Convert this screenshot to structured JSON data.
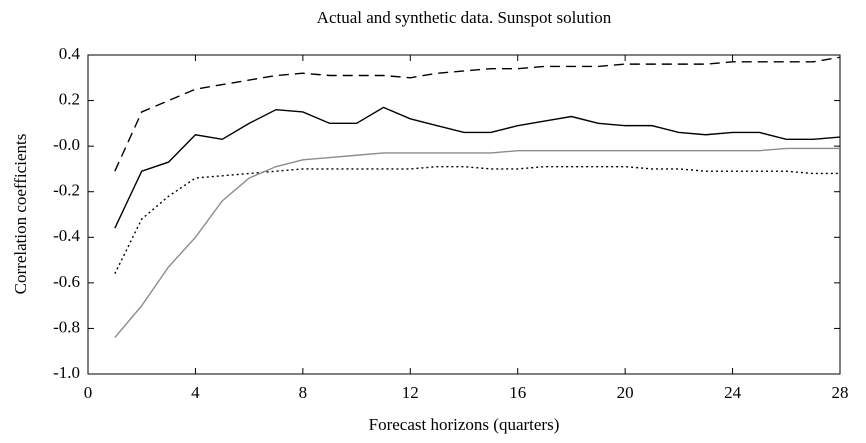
{
  "chart_data": {
    "type": "line",
    "title": "Actual and synthetic data. Sunspot solution",
    "x_label": "Forecast horizons (quarters)",
    "y_label": "Correlation coefficients",
    "x": [
      1,
      2,
      3,
      4,
      5,
      6,
      7,
      8,
      9,
      10,
      11,
      12,
      13,
      14,
      15,
      16,
      17,
      18,
      19,
      20,
      21,
      22,
      23,
      24,
      25,
      26,
      27,
      28
    ],
    "series": [
      {
        "color": "#000000",
        "dash": "dashed",
        "values": [
          -0.11,
          0.15,
          0.2,
          0.25,
          0.27,
          0.29,
          0.31,
          0.32,
          0.31,
          0.31,
          0.31,
          0.3,
          0.32,
          0.33,
          0.34,
          0.34,
          0.35,
          0.35,
          0.35,
          0.36,
          0.36,
          0.36,
          0.36,
          0.37,
          0.37,
          0.37,
          0.37,
          0.39
        ]
      },
      {
        "color": "#000000",
        "dash": "solid",
        "values": [
          -0.36,
          -0.11,
          -0.07,
          0.05,
          0.03,
          0.1,
          0.16,
          0.15,
          0.1,
          0.1,
          0.17,
          0.12,
          0.09,
          0.06,
          0.06,
          0.09,
          0.11,
          0.13,
          0.1,
          0.09,
          0.09,
          0.06,
          0.05,
          0.06,
          0.06,
          0.03,
          0.03,
          0.04
        ]
      },
      {
        "color": "#000000",
        "dash": "dotted",
        "values": [
          -0.56,
          -0.32,
          -0.22,
          -0.14,
          -0.13,
          -0.12,
          -0.11,
          -0.1,
          -0.1,
          -0.1,
          -0.1,
          -0.1,
          -0.09,
          -0.09,
          -0.1,
          -0.1,
          -0.09,
          -0.09,
          -0.09,
          -0.09,
          -0.1,
          -0.1,
          -0.11,
          -0.11,
          -0.11,
          -0.11,
          -0.12,
          -0.12
        ]
      },
      {
        "color": "#8c8c8c",
        "dash": "solid",
        "values": [
          -0.84,
          -0.7,
          -0.53,
          -0.4,
          -0.24,
          -0.14,
          -0.09,
          -0.06,
          -0.05,
          -0.04,
          -0.03,
          -0.03,
          -0.03,
          -0.03,
          -0.03,
          -0.02,
          -0.02,
          -0.02,
          -0.02,
          -0.02,
          -0.02,
          -0.02,
          -0.02,
          -0.02,
          -0.02,
          -0.01,
          -0.01,
          -0.01
        ]
      }
    ],
    "xlim": [
      0,
      28
    ],
    "xticks": [
      0,
      4,
      8,
      12,
      16,
      20,
      24,
      28
    ],
    "ylim": [
      -1,
      0.4
    ],
    "yticks": [
      {
        "value": -1,
        "label": "-1.0"
      },
      -0.8,
      -0.6,
      -0.4,
      -0.2,
      {
        "value": 0,
        "label": "-0.0"
      },
      0.2,
      0.4
    ]
  }
}
